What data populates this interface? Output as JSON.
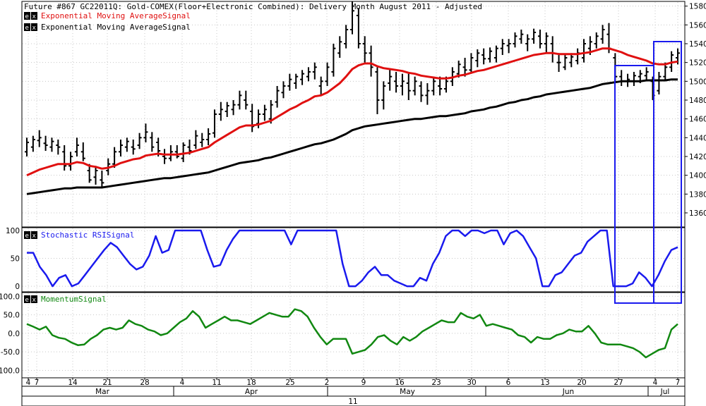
{
  "title": "Future #867 GC22011Q: Gold-COMEX(Floor+Electronic Combined): Delivery Month August 2011 -  Adjusted",
  "badge_label": "e x",
  "colors": {
    "price": "#000000",
    "ema_fast": "#e01010",
    "ema_slow": "#000000",
    "stoch": "#1a1aee",
    "momentum": "#118811",
    "highlight": "#1a1aee",
    "grid": "#c8c8c8"
  },
  "chart_data": [
    {
      "type": "bar",
      "panel": "price",
      "legend": [
        {
          "label": "Exponential Moving AverageSignal",
          "color": "#e01010"
        },
        {
          "label": "Exponential Moving AverageSignal",
          "color": "#000000"
        }
      ],
      "ylim": [
        1345,
        1585
      ],
      "yticks": [
        1360,
        1380,
        1400,
        1420,
        1440,
        1460,
        1480,
        1500,
        1520,
        1540,
        1560,
        1580
      ],
      "ohlc": [
        [
          1425,
          1440,
          1420,
          1435
        ],
        [
          1430,
          1442,
          1425,
          1438
        ],
        [
          1437,
          1448,
          1430,
          1440
        ],
        [
          1434,
          1442,
          1426,
          1432
        ],
        [
          1430,
          1440,
          1425,
          1436
        ],
        [
          1432,
          1438,
          1422,
          1430
        ],
        [
          1425,
          1432,
          1405,
          1410
        ],
        [
          1410,
          1425,
          1405,
          1420
        ],
        [
          1425,
          1440,
          1420,
          1432
        ],
        [
          1425,
          1435,
          1415,
          1418
        ],
        [
          1405,
          1412,
          1392,
          1395
        ],
        [
          1398,
          1410,
          1390,
          1405
        ],
        [
          1395,
          1405,
          1388,
          1392
        ],
        [
          1405,
          1418,
          1400,
          1412
        ],
        [
          1412,
          1430,
          1408,
          1425
        ],
        [
          1425,
          1438,
          1420,
          1432
        ],
        [
          1430,
          1440,
          1425,
          1436
        ],
        [
          1430,
          1438,
          1422,
          1428
        ],
        [
          1432,
          1445,
          1428,
          1440
        ],
        [
          1440,
          1455,
          1435,
          1446
        ],
        [
          1440,
          1446,
          1425,
          1430
        ],
        [
          1435,
          1440,
          1420,
          1426
        ],
        [
          1420,
          1428,
          1412,
          1418
        ],
        [
          1418,
          1432,
          1415,
          1425
        ],
        [
          1425,
          1432,
          1418,
          1420
        ],
        [
          1418,
          1435,
          1414,
          1432
        ],
        [
          1430,
          1438,
          1422,
          1426
        ],
        [
          1432,
          1448,
          1428,
          1442
        ],
        [
          1435,
          1445,
          1430,
          1438
        ],
        [
          1438,
          1450,
          1432,
          1444
        ],
        [
          1445,
          1470,
          1440,
          1465
        ],
        [
          1465,
          1478,
          1458,
          1470
        ],
        [
          1468,
          1478,
          1462,
          1474
        ],
        [
          1470,
          1480,
          1464,
          1475
        ],
        [
          1475,
          1490,
          1470,
          1485
        ],
        [
          1480,
          1490,
          1470,
          1475
        ],
        [
          1468,
          1476,
          1446,
          1452
        ],
        [
          1455,
          1470,
          1450,
          1465
        ],
        [
          1465,
          1475,
          1458,
          1470
        ],
        [
          1460,
          1480,
          1455,
          1475
        ],
        [
          1478,
          1495,
          1472,
          1490
        ],
        [
          1488,
          1500,
          1482,
          1495
        ],
        [
          1495,
          1508,
          1490,
          1502
        ],
        [
          1498,
          1508,
          1492,
          1505
        ],
        [
          1502,
          1512,
          1496,
          1508
        ],
        [
          1505,
          1515,
          1500,
          1510
        ],
        [
          1510,
          1520,
          1502,
          1515
        ],
        [
          1495,
          1505,
          1485,
          1500
        ],
        [
          1500,
          1520,
          1495,
          1515
        ],
        [
          1510,
          1540,
          1505,
          1535
        ],
        [
          1530,
          1548,
          1525,
          1542
        ],
        [
          1540,
          1560,
          1535,
          1555
        ],
        [
          1555,
          1585,
          1550,
          1575
        ],
        [
          1570,
          1578,
          1535,
          1540
        ],
        [
          1540,
          1548,
          1520,
          1530
        ],
        [
          1530,
          1538,
          1505,
          1515
        ],
        [
          1510,
          1515,
          1465,
          1480
        ],
        [
          1480,
          1500,
          1470,
          1495
        ],
        [
          1498,
          1512,
          1490,
          1505
        ],
        [
          1500,
          1510,
          1488,
          1495
        ],
        [
          1495,
          1508,
          1485,
          1500
        ],
        [
          1498,
          1510,
          1480,
          1490
        ],
        [
          1490,
          1505,
          1485,
          1500
        ],
        [
          1495,
          1500,
          1478,
          1485
        ],
        [
          1485,
          1498,
          1475,
          1490
        ],
        [
          1490,
          1505,
          1485,
          1500
        ],
        [
          1495,
          1505,
          1485,
          1492
        ],
        [
          1492,
          1505,
          1488,
          1500
        ],
        [
          1500,
          1515,
          1495,
          1510
        ],
        [
          1508,
          1522,
          1504,
          1518
        ],
        [
          1515,
          1525,
          1505,
          1512
        ],
        [
          1512,
          1530,
          1508,
          1525
        ],
        [
          1522,
          1534,
          1515,
          1530
        ],
        [
          1528,
          1535,
          1518,
          1524
        ],
        [
          1524,
          1536,
          1520,
          1532
        ],
        [
          1525,
          1538,
          1520,
          1535
        ],
        [
          1535,
          1545,
          1528,
          1540
        ],
        [
          1538,
          1545,
          1530,
          1540
        ],
        [
          1540,
          1552,
          1536,
          1548
        ],
        [
          1545,
          1555,
          1540,
          1550
        ],
        [
          1540,
          1550,
          1532,
          1545
        ],
        [
          1545,
          1556,
          1540,
          1552
        ],
        [
          1548,
          1555,
          1535,
          1540
        ],
        [
          1540,
          1552,
          1530,
          1548
        ],
        [
          1540,
          1548,
          1520,
          1530
        ],
        [
          1520,
          1530,
          1510,
          1520
        ],
        [
          1515,
          1528,
          1512,
          1525
        ],
        [
          1520,
          1530,
          1515,
          1526
        ],
        [
          1522,
          1535,
          1518,
          1530
        ],
        [
          1525,
          1545,
          1520,
          1540
        ],
        [
          1535,
          1548,
          1528,
          1542
        ],
        [
          1540,
          1552,
          1535,
          1548
        ],
        [
          1545,
          1560,
          1540,
          1555
        ],
        [
          1550,
          1562,
          1530,
          1535
        ],
        [
          1525,
          1530,
          1500,
          1505
        ],
        [
          1505,
          1512,
          1495,
          1500
        ],
        [
          1500,
          1508,
          1494,
          1502
        ],
        [
          1500,
          1510,
          1495,
          1506
        ],
        [
          1505,
          1512,
          1498,
          1508
        ],
        [
          1506,
          1515,
          1500,
          1510
        ],
        [
          1500,
          1505,
          1480,
          1485
        ],
        [
          1490,
          1510,
          1486,
          1505
        ],
        [
          1505,
          1520,
          1500,
          1515
        ],
        [
          1515,
          1532,
          1510,
          1528
        ],
        [
          1525,
          1535,
          1518,
          1530
        ]
      ],
      "ema_fast": [
        1400,
        1403,
        1406,
        1408,
        1410,
        1412,
        1412,
        1412,
        1414,
        1413,
        1410,
        1409,
        1407,
        1408,
        1410,
        1413,
        1415,
        1417,
        1418,
        1421,
        1422,
        1423,
        1422,
        1422,
        1422,
        1423,
        1424,
        1426,
        1428,
        1430,
        1435,
        1439,
        1443,
        1447,
        1451,
        1453,
        1453,
        1454,
        1456,
        1458,
        1462,
        1466,
        1470,
        1473,
        1477,
        1480,
        1484,
        1485,
        1488,
        1493,
        1498,
        1505,
        1513,
        1517,
        1519,
        1519,
        1516,
        1514,
        1513,
        1512,
        1511,
        1509,
        1508,
        1506,
        1505,
        1504,
        1503,
        1503,
        1504,
        1506,
        1507,
        1509,
        1511,
        1512,
        1514,
        1516,
        1518,
        1520,
        1522,
        1524,
        1526,
        1528,
        1529,
        1530,
        1530,
        1529,
        1529,
        1529,
        1529,
        1530,
        1531,
        1533,
        1535,
        1535,
        1533,
        1531,
        1528,
        1526,
        1524,
        1522,
        1519,
        1518,
        1518,
        1520,
        1521
      ],
      "ema_slow": [
        1380,
        1381,
        1382,
        1383,
        1384,
        1385,
        1386,
        1386,
        1387,
        1387,
        1387,
        1387,
        1387,
        1388,
        1389,
        1390,
        1391,
        1392,
        1393,
        1394,
        1395,
        1396,
        1397,
        1397,
        1398,
        1399,
        1400,
        1401,
        1402,
        1403,
        1405,
        1407,
        1409,
        1411,
        1413,
        1414,
        1415,
        1416,
        1418,
        1419,
        1421,
        1423,
        1425,
        1427,
        1429,
        1431,
        1433,
        1434,
        1436,
        1438,
        1441,
        1444,
        1448,
        1450,
        1452,
        1453,
        1454,
        1455,
        1456,
        1457,
        1458,
        1459,
        1460,
        1460,
        1461,
        1462,
        1463,
        1463,
        1464,
        1465,
        1466,
        1468,
        1469,
        1470,
        1472,
        1473,
        1475,
        1477,
        1478,
        1480,
        1481,
        1483,
        1484,
        1486,
        1487,
        1488,
        1489,
        1490,
        1491,
        1492,
        1493,
        1495,
        1497,
        1498,
        1499,
        1500,
        1500,
        1500,
        1500,
        1501,
        1501,
        1501,
        1501,
        1502,
        1502
      ]
    },
    {
      "type": "line",
      "panel": "stochastic",
      "legend": [
        {
          "label": "Stochastic RSISignal",
          "color": "#1a1aee"
        }
      ],
      "ylim": [
        -10,
        105
      ],
      "yticks": [
        0,
        50,
        100
      ],
      "values": [
        60,
        60,
        35,
        20,
        0,
        15,
        20,
        0,
        5,
        20,
        35,
        50,
        65,
        78,
        70,
        55,
        40,
        30,
        35,
        55,
        90,
        60,
        65,
        100,
        100,
        100,
        100,
        100,
        65,
        35,
        38,
        65,
        85,
        100,
        100,
        100,
        100,
        100,
        100,
        100,
        100,
        75,
        100,
        100,
        100,
        100,
        100,
        100,
        100,
        40,
        0,
        0,
        10,
        25,
        35,
        20,
        20,
        10,
        5,
        0,
        0,
        15,
        10,
        40,
        60,
        90,
        100,
        100,
        90,
        100,
        100,
        95,
        100,
        100,
        75,
        95,
        100,
        90,
        70,
        50,
        0,
        0,
        20,
        25,
        40,
        55,
        60,
        80,
        90,
        100,
        100,
        0,
        0,
        0,
        5,
        25,
        15,
        0,
        20,
        45,
        65,
        70
      ],
      "ximap": "bars"
    },
    {
      "type": "line",
      "panel": "momentum",
      "legend": [
        {
          "label": "MomentumSignal",
          "color": "#118811"
        }
      ],
      "ylim": [
        -120,
        110
      ],
      "yticks": [
        100.0,
        50.0,
        0.0,
        -50.0,
        -100.0
      ],
      "ytick_labels": [
        "100.0",
        "50.0",
        "0.0",
        "-50.0",
        "-100.0"
      ],
      "values": [
        25,
        18,
        10,
        18,
        -5,
        -12,
        -15,
        -25,
        -32,
        -30,
        -15,
        -5,
        10,
        15,
        10,
        15,
        35,
        25,
        20,
        10,
        5,
        -5,
        0,
        15,
        30,
        40,
        60,
        45,
        15,
        25,
        35,
        45,
        35,
        35,
        30,
        25,
        35,
        45,
        55,
        50,
        45,
        45,
        65,
        60,
        45,
        15,
        -10,
        -30,
        -15,
        -15,
        -15,
        -55,
        -50,
        -45,
        -30,
        -10,
        -5,
        -20,
        -30,
        -10,
        -20,
        -10,
        5,
        15,
        25,
        35,
        30,
        30,
        55,
        45,
        40,
        50,
        20,
        25,
        20,
        15,
        10,
        -5,
        -10,
        -25,
        -10,
        -15,
        -15,
        -5,
        0,
        10,
        5,
        5,
        20,
        0,
        -25,
        -30,
        -30,
        -30,
        -35,
        -40,
        -50,
        -65,
        -55,
        -45,
        -40,
        10,
        25
      ],
      "ximap": "bars"
    }
  ],
  "x_axis": {
    "day_labels": [
      "4",
      "7",
      "14",
      "21",
      "28",
      "4",
      "11",
      "18",
      "25",
      "2",
      "9",
      "16",
      "23",
      "30",
      "6",
      "13",
      "20",
      "27",
      "4",
      "7"
    ],
    "month_labels": [
      "Mar",
      "Apr",
      "May",
      "Jun",
      "Jul"
    ],
    "year_label": "11"
  }
}
